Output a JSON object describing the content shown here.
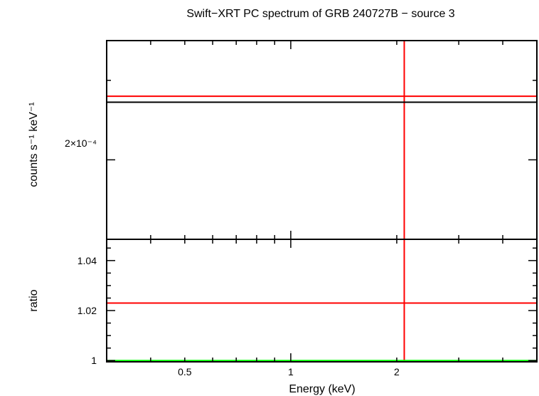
{
  "title": "Swift−XRT PC spectrum of GRB 240727B − source 3",
  "colors": {
    "frame": "#000000",
    "data": "#ff0000",
    "model": "#000000",
    "unity": "#00ff00",
    "background": "#ffffff"
  },
  "chart_data": [
    {
      "type": "line",
      "panel": "spectrum",
      "ylabel": "counts s⁻¹ keV⁻¹",
      "ytick_labels": [
        {
          "value": 0.0002,
          "label": "2×10⁻⁴"
        }
      ],
      "xscale": "log",
      "xlim": [
        0.3,
        5.0
      ],
      "ylim": [
        0.00016,
        0.00026
      ],
      "series": [
        {
          "role": "data",
          "color": "#ff0000",
          "x": [
            0.3,
            5.0
          ],
          "y": [
            0.000232,
            0.000232
          ]
        },
        {
          "role": "data-errorbar",
          "color": "#ff0000",
          "x": [
            2.1,
            2.1
          ],
          "y": [
            0.00016,
            0.00026
          ]
        },
        {
          "role": "model",
          "color": "#000000",
          "x": [
            0.3,
            5.0
          ],
          "y": [
            0.000229,
            0.000229
          ]
        }
      ]
    },
    {
      "type": "line",
      "panel": "ratio",
      "xlabel": "Energy (keV)",
      "ylabel": "ratio",
      "xscale": "log",
      "xlim": [
        0.3,
        5.0
      ],
      "ylim": [
        0.9995,
        1.0485
      ],
      "x_ticks": [
        {
          "value": 0.5,
          "label": "0.5"
        },
        {
          "value": 1,
          "label": "1"
        },
        {
          "value": 2,
          "label": "2"
        }
      ],
      "y_ticks": [
        {
          "value": 1.0,
          "label": "1"
        },
        {
          "value": 1.02,
          "label": "1.02"
        },
        {
          "value": 1.04,
          "label": "1.04"
        }
      ],
      "series": [
        {
          "role": "data",
          "color": "#ff0000",
          "x": [
            0.3,
            5.0
          ],
          "y": [
            1.023,
            1.023
          ]
        },
        {
          "role": "data-errorbar",
          "color": "#ff0000",
          "x": [
            2.1,
            2.1
          ],
          "y": [
            0.9995,
            1.0485
          ]
        },
        {
          "role": "unity",
          "color": "#00ff00",
          "x": [
            0.3,
            5.0
          ],
          "y": [
            1.0,
            1.0
          ]
        }
      ]
    }
  ]
}
